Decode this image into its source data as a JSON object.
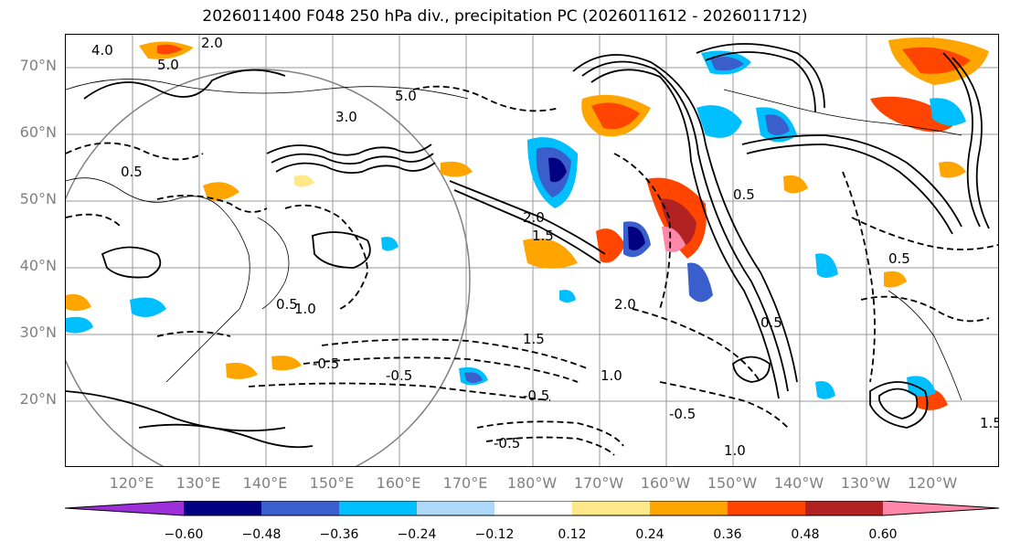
{
  "title": "2026011400 F048 250 hPa div., precipitation PC (2026011612 - 2026011712)",
  "lat_labels": [
    "70°N",
    "60°N",
    "50°N",
    "40°N",
    "30°N",
    "20°N"
  ],
  "lon_labels": [
    "120°E",
    "130°E",
    "140°E",
    "150°E",
    "160°E",
    "170°E",
    "180°W",
    "170°W",
    "160°W",
    "150°W",
    "140°W",
    "130°W",
    "120°W"
  ],
  "contour_labels": [
    "4.0",
    "2.0",
    "5.0",
    "5.0",
    "3.0",
    "0.5",
    "1.0",
    "0.5",
    "-0.5",
    "-0.5",
    "-0.5",
    "-0.5",
    "1.5",
    "2.0",
    "0.5",
    "1.0",
    "1.5",
    "0.5",
    "-0.5",
    "1.0",
    "0.5",
    "1.5",
    "2.0"
  ],
  "colorbar": {
    "colors": [
      "#9b30d9",
      "#000080",
      "#3a5fcd",
      "#00bfff",
      "#add8f7",
      "#ffffff",
      "#ffe88a",
      "#ffa500",
      "#ff4500",
      "#b22222",
      "#ff88aa"
    ],
    "ticks": [
      "−0.60",
      "−0.48",
      "−0.36",
      "−0.24",
      "−0.12",
      "0.12",
      "0.24",
      "0.36",
      "0.48",
      "0.60"
    ]
  }
}
